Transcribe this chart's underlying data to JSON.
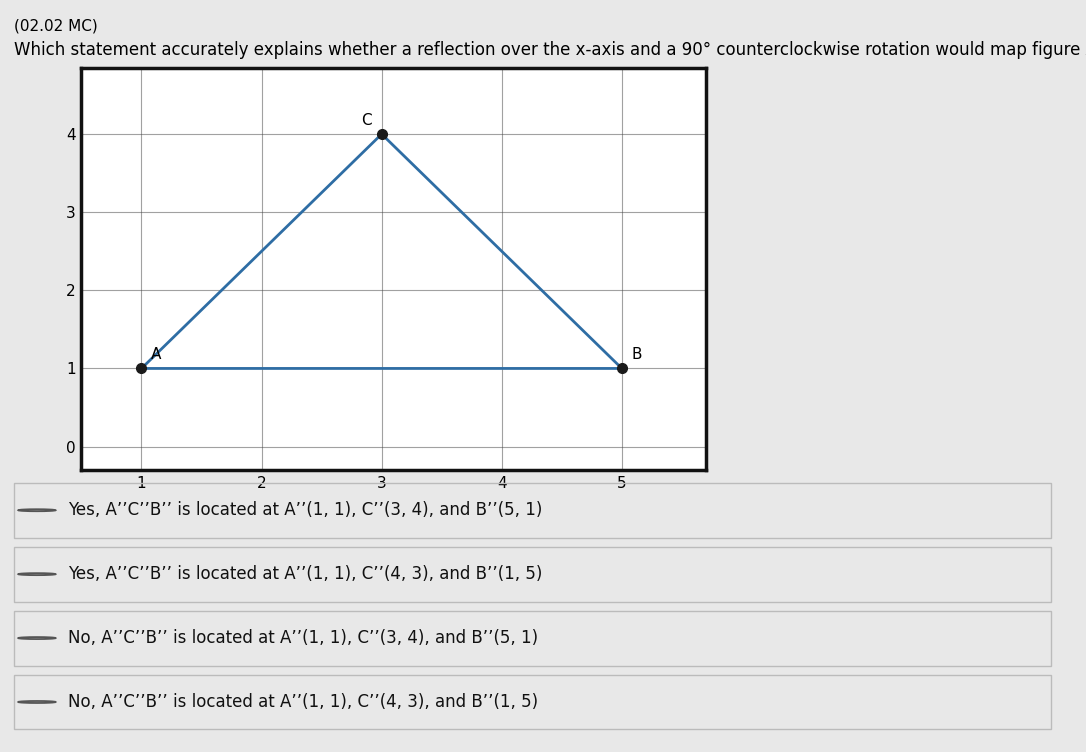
{
  "title_line1": "(02.02 MC)",
  "title_line2": "Which statement accurately explains whether a reflection over the x-axis and a 90° counterclockwise rotation would map figure ACB onto itself?",
  "graph": {
    "xlim": [
      0,
      6
    ],
    "ylim": [
      -0.5,
      5
    ],
    "display_xlim": [
      0.5,
      5.7
    ],
    "display_ylim": [
      -0.3,
      4.85
    ],
    "xticks": [
      1,
      2,
      3,
      4,
      5
    ],
    "yticks": [
      0,
      1,
      2,
      3,
      4
    ],
    "points": {
      "A": [
        1,
        1
      ],
      "C": [
        3,
        4
      ],
      "B": [
        5,
        1
      ]
    },
    "triangle_color": "#2e6da4",
    "triangle_linewidth": 2.0,
    "dot_color": "#1a1a1a",
    "dot_size": 7,
    "label_fontsize": 11,
    "tick_fontsize": 11,
    "border_color": "#111111",
    "border_linewidth": 2.5,
    "grid_color": "#444444",
    "grid_alpha": 0.5,
    "grid_linewidth": 0.8
  },
  "option_texts": [
    "Yes, A’’C’’B’’ is located at A’’(1, 1), C’’(3, 4), and B’’(5, 1)",
    "Yes, A’’C’’B’’ is located at A’’(1, 1), C’’(4, 3), and B’’(1, 5)",
    "No, A’’C’’B’’ is located at A’’(1, 1), C’’(3, 4), and B’’(5, 1)",
    "No, A’’C’’B’’ is located at A’’(1, 1), C’’(4, 3), and B’’(1, 5)"
  ],
  "bg_color": "#e8e8e8",
  "graph_bg": "#ffffff",
  "option_bg": "#ffffff",
  "option_border": "#bbbbbb",
  "option_fontsize": 12,
  "radio_color": "#555555",
  "title1_fontsize": 11,
  "title2_fontsize": 12
}
